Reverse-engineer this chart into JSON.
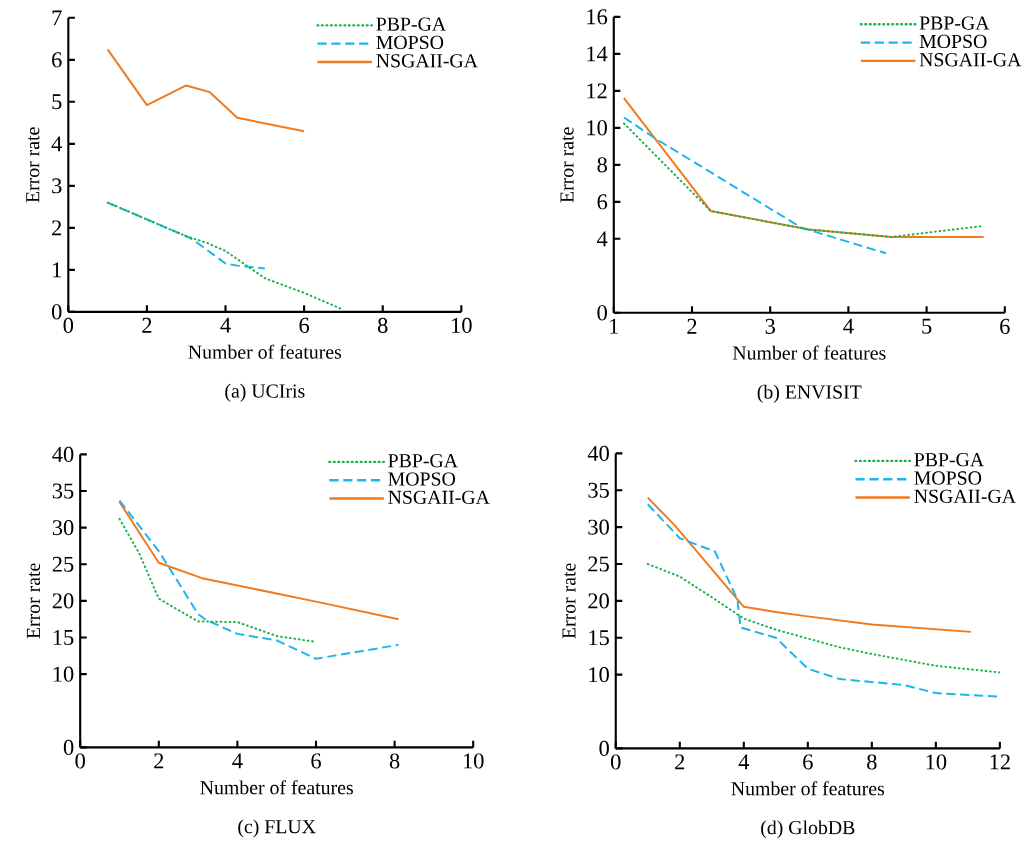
{
  "chart_data": [
    {
      "type": "line",
      "title": "(a) UCIris",
      "xlabel": "Number of features",
      "ylabel": "Error rate",
      "xlim": [
        0,
        10
      ],
      "ylim": [
        0,
        7
      ],
      "xticks": [
        0,
        2,
        4,
        6,
        8,
        10
      ],
      "yticks": [
        0,
        1,
        2,
        3,
        4,
        5,
        6,
        7
      ],
      "legend": "top right",
      "series": [
        {
          "name": "PBP-GA",
          "color": "#1bb24b",
          "line_style": "dotted",
          "x": [
            1,
            3,
            3.5,
            4,
            5,
            6,
            7
          ],
          "values": [
            2.6,
            1.8,
            1.65,
            1.45,
            0.8,
            0.45,
            0.05
          ]
        },
        {
          "name": "MOPSO",
          "color": "#1eb4ec",
          "line_style": "dashed",
          "x": [
            1,
            3,
            3.2,
            4,
            4.3,
            5
          ],
          "values": [
            2.6,
            1.8,
            1.7,
            1.15,
            1.1,
            1.03
          ]
        },
        {
          "name": "NSGAII-GA",
          "color": "#f07a1e",
          "line_style": "solid",
          "x": [
            1,
            2,
            3,
            3.6,
            4.3,
            6
          ],
          "values": [
            6.25,
            4.92,
            5.39,
            5.23,
            4.62,
            4.3
          ]
        }
      ]
    },
    {
      "type": "line",
      "title": "(b) ENVISIT",
      "xlabel": "Number of features",
      "ylabel": "Error rate",
      "xlim": [
        1,
        6
      ],
      "ylim": [
        0,
        16
      ],
      "xticks": [
        1,
        2,
        3,
        4,
        5,
        6
      ],
      "yticks": [
        0,
        4,
        6,
        8,
        10,
        12,
        14,
        16
      ],
      "legend": "top right",
      "series": [
        {
          "name": "PBP-GA",
          "color": "#1bb24b",
          "line_style": "dotted",
          "x": [
            1.13,
            2.24,
            3.5,
            4.55,
            5.73
          ],
          "values": [
            10.24,
            5.5,
            4.5,
            4.1,
            4.7
          ]
        },
        {
          "name": "MOPSO",
          "color": "#1eb4ec",
          "line_style": "dashed",
          "x": [
            1.13,
            1.54,
            3.4,
            4.48
          ],
          "values": [
            10.56,
            9.4,
            4.6,
            3.22
          ]
        },
        {
          "name": "NSGAII-GA",
          "color": "#f07a1e",
          "line_style": "solid",
          "x": [
            1.13,
            2.24,
            3.5,
            4.55,
            5.73
          ],
          "values": [
            11.6,
            5.5,
            4.5,
            4.1,
            4.1
          ]
        }
      ]
    },
    {
      "type": "line",
      "title": "(c) FLUX",
      "xlabel": "Number of features",
      "ylabel": "Error rate",
      "xlim": [
        0,
        10
      ],
      "ylim": [
        0,
        40
      ],
      "xticks": [
        0,
        2,
        4,
        6,
        8,
        10
      ],
      "yticks": [
        0,
        10,
        15,
        20,
        25,
        30,
        35,
        40
      ],
      "legend": "top right",
      "series": [
        {
          "name": "PBP-GA",
          "color": "#1bb24b",
          "line_style": "dotted",
          "x": [
            1,
            1.5,
            2,
            3,
            4,
            5,
            6
          ],
          "values": [
            31.2,
            26.5,
            20.3,
            17.2,
            17.1,
            15.2,
            14.4
          ]
        },
        {
          "name": "MOPSO",
          "color": "#1eb4ec",
          "line_style": "dashed",
          "x": [
            1,
            2,
            3,
            3.2,
            4,
            5,
            6,
            8.1
          ],
          "values": [
            33.7,
            26.8,
            18.2,
            17.4,
            15.5,
            14.6,
            12.1,
            14
          ]
        },
        {
          "name": "NSGAII-GA",
          "color": "#f07a1e",
          "line_style": "solid",
          "x": [
            1,
            2,
            3.1,
            6,
            8.1
          ],
          "values": [
            33.5,
            25.2,
            23.1,
            19.9,
            17.5
          ]
        }
      ]
    },
    {
      "type": "line",
      "title": "(d) GlobDB",
      "xlabel": "Number of features",
      "ylabel": "Error rate",
      "xlim": [
        0,
        12
      ],
      "ylim": [
        0,
        40
      ],
      "xticks": [
        0,
        2,
        4,
        6,
        8,
        10,
        12
      ],
      "yticks": [
        0,
        10,
        15,
        20,
        25,
        30,
        35,
        40
      ],
      "legend": "top right",
      "series": [
        {
          "name": "PBP-GA",
          "color": "#1bb24b",
          "line_style": "dotted",
          "x": [
            1,
            2,
            3,
            4,
            5,
            6,
            7,
            8,
            10,
            12
          ],
          "values": [
            25,
            23.3,
            20.5,
            17.6,
            16.1,
            14.9,
            13.7,
            12.8,
            11.2,
            10.3
          ]
        },
        {
          "name": "MOPSO",
          "color": "#1eb4ec",
          "line_style": "dashed",
          "x": [
            1,
            2,
            3.1,
            3.8,
            3.9,
            5,
            6,
            7,
            8,
            9,
            10,
            12
          ],
          "values": [
            33.1,
            28.5,
            26.7,
            20.2,
            16.4,
            15,
            10.8,
            9.4,
            9,
            8.6,
            7.5,
            7
          ]
        },
        {
          "name": "NSGAII-GA",
          "color": "#f07a1e",
          "line_style": "solid",
          "x": [
            1,
            1.85,
            4,
            5,
            6,
            8,
            11.1
          ],
          "values": [
            34,
            30.2,
            19.2,
            18.5,
            17.9,
            16.8,
            15.8
          ]
        }
      ]
    }
  ]
}
